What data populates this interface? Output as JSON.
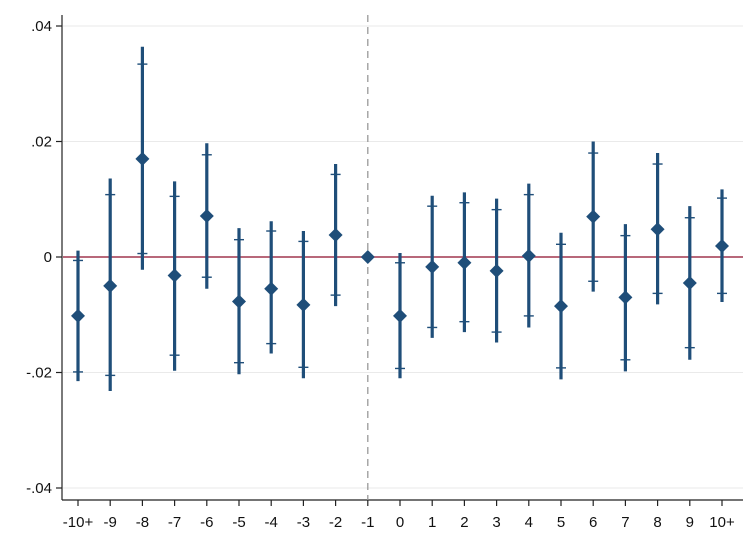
{
  "colors": {
    "marker": "#1f4e79",
    "zero_line": "#a1364f",
    "event_line": "#9a9a9a",
    "grid": "#eaeaea",
    "axis": "#222222"
  },
  "chart_data": {
    "type": "scatter",
    "style": "coefficient plot with 95% and 90% confidence intervals",
    "title": "",
    "xlabel": "",
    "ylabel": "",
    "categories": [
      "-10+",
      "-9",
      "-8",
      "-7",
      "-6",
      "-5",
      "-4",
      "-3",
      "-2",
      "-1",
      "0",
      "1",
      "2",
      "3",
      "4",
      "5",
      "6",
      "7",
      "8",
      "9",
      "10+"
    ],
    "estimates": [
      -0.0102,
      -0.005,
      0.017,
      -0.0032,
      0.0071,
      -0.0077,
      -0.0055,
      -0.0083,
      0.0038,
      0.0,
      -0.0102,
      -0.0017,
      -0.001,
      -0.0024,
      0.0002,
      -0.0085,
      0.007,
      -0.007,
      0.0048,
      -0.0045,
      0.0019
    ],
    "ci95": [
      [
        -0.0215,
        0.0011
      ],
      [
        -0.0232,
        0.0136
      ],
      [
        -0.0022,
        0.0364
      ],
      [
        -0.0197,
        0.0131
      ],
      [
        -0.0055,
        0.0197
      ],
      [
        -0.0203,
        0.005
      ],
      [
        -0.0167,
        0.0062
      ],
      [
        -0.021,
        0.0045
      ],
      [
        -0.0085,
        0.0161
      ],
      [
        0.0,
        0.0
      ],
      [
        -0.021,
        0.0007
      ],
      [
        -0.014,
        0.0106
      ],
      [
        -0.013,
        0.0112
      ],
      [
        -0.0148,
        0.0101
      ],
      [
        -0.0122,
        0.0127
      ],
      [
        -0.0212,
        0.0042
      ],
      [
        -0.006,
        0.02
      ],
      [
        -0.0198,
        0.0057
      ],
      [
        -0.0082,
        0.018
      ],
      [
        -0.0178,
        0.0088
      ],
      [
        -0.0078,
        0.0117
      ]
    ],
    "ci90": [
      [
        -0.0199,
        -0.0006
      ],
      [
        -0.0205,
        0.0108
      ],
      [
        0.0006,
        0.0334
      ],
      [
        -0.017,
        0.0105
      ],
      [
        -0.0035,
        0.0177
      ],
      [
        -0.0183,
        0.003
      ],
      [
        -0.015,
        0.0045
      ],
      [
        -0.0191,
        0.0027
      ],
      [
        -0.0066,
        0.0143
      ],
      [
        0.0,
        0.0
      ],
      [
        -0.0193,
        -0.001
      ],
      [
        -0.0122,
        0.0088
      ],
      [
        -0.0112,
        0.0094
      ],
      [
        -0.013,
        0.0082
      ],
      [
        -0.0102,
        0.0108
      ],
      [
        -0.0192,
        0.0022
      ],
      [
        -0.0042,
        0.018
      ],
      [
        -0.0178,
        0.0037
      ],
      [
        -0.0063,
        0.0161
      ],
      [
        -0.0157,
        0.0068
      ],
      [
        -0.0063,
        0.0102
      ]
    ],
    "y_ticks": [
      0.04,
      0.02,
      0,
      -0.02,
      -0.04
    ],
    "y_tick_labels": [
      ".04",
      ".02",
      "0",
      "-.02",
      "-.04"
    ],
    "ylim": [
      -0.04,
      0.04
    ],
    "reference_line_y": 0,
    "event_line_category": "-1",
    "grid": true,
    "legend": "none"
  }
}
